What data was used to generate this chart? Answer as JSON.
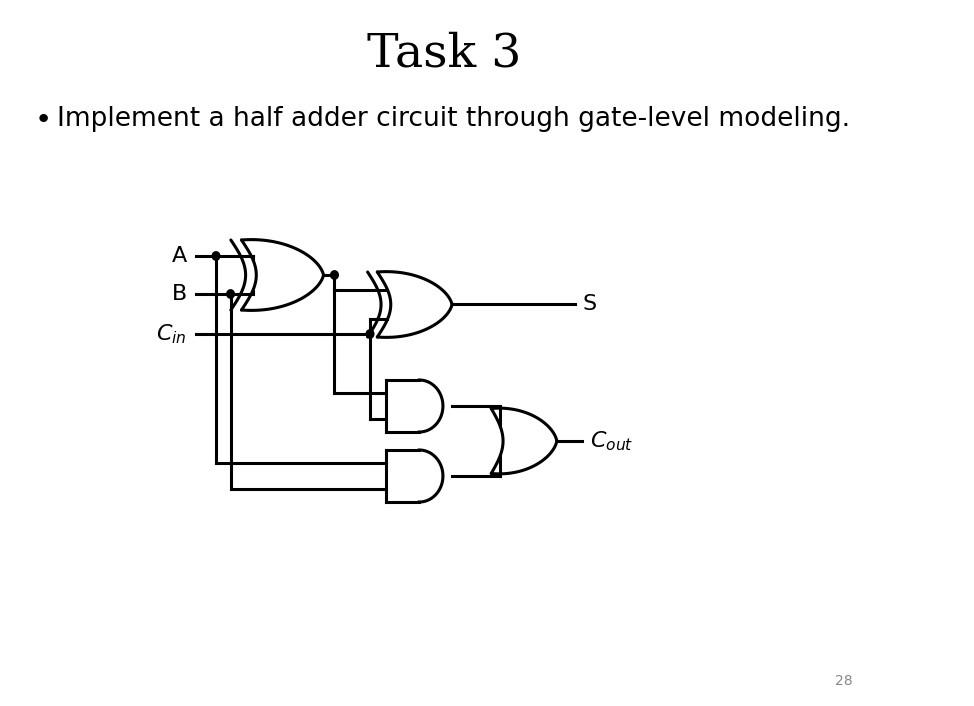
{
  "title": "Task 3",
  "title_fontsize": 34,
  "bullet_text": "Implement a half adder circuit through gate-level modeling.",
  "bullet_fontsize": 19,
  "page_number": "28",
  "bg_color": "#ffffff",
  "line_color": "#000000",
  "lw": 2.2,
  "dot_r": 0.042
}
